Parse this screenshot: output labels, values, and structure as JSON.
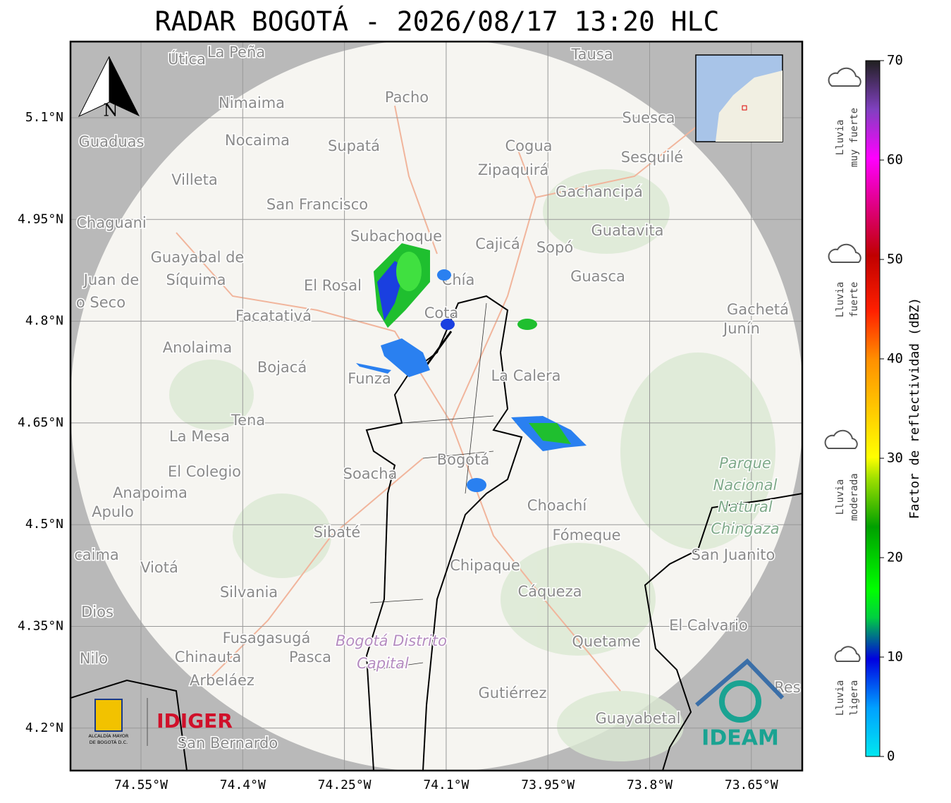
{
  "title": "RADAR BOGOTÁ - 2026/08/17 13:20 HLC",
  "map": {
    "lat_ticks": [
      "5.1°N",
      "4.95°N",
      "4.8°N",
      "4.65°N",
      "4.5°N",
      "4.35°N",
      "4.2°N"
    ],
    "lon_ticks": [
      "74.55°W",
      "74.4°W",
      "74.25°W",
      "74.1°W",
      "73.95°W",
      "73.8°W",
      "73.65°W"
    ],
    "compass": "N",
    "places": [
      "Útica",
      "La Peña",
      "Tausa",
      "Pacho",
      "Nimaima",
      "Guaduas",
      "Nocaima",
      "Supatá",
      "Cogua",
      "Suesca",
      "Sesquilé",
      "Zipaquirá",
      "Villeta",
      "Gachancipá",
      "San Francisco",
      "Chaguani",
      "Guatavita",
      "Subachoque",
      "Cajicá",
      "Sopó",
      "Guayabal de",
      "Síquima",
      "Juan de",
      "o Seco",
      "Guasca",
      "El Rosal",
      "Chía",
      "Cota",
      "Facatativá",
      "Gachetá",
      "Junín",
      "Anolaima",
      "Bojacá",
      "Funza",
      "La Calera",
      "Tena",
      "La Mesa",
      "Bogotá",
      "El Colegio",
      "Soacha",
      "Anapoima",
      "Apulo",
      "Choachí",
      "Sibaté",
      "Fómeque",
      "caima",
      "San Juanito",
      "Viotá",
      "Chipaque",
      "Silvania",
      "Cáqueza",
      "Dios",
      "El Calvario",
      "Fusagasugá",
      "Quetame",
      "Nilo",
      "Chinauta",
      "Pasca",
      "Arbeláez",
      "Gutiérrez",
      "Res",
      "Guayabetal",
      "San Bernardo"
    ],
    "park_label": [
      "Parque",
      "Nacional",
      "Natural",
      "Chingaza"
    ],
    "district_label": [
      "Bogotá Distrito",
      "Capital"
    ]
  },
  "colorbar": {
    "label": "Factor de reflectividad (dBZ)",
    "lim": [
      0,
      70
    ],
    "ticks": [
      0,
      10,
      20,
      30,
      40,
      50,
      60,
      70
    ]
  },
  "rain_levels": [
    {
      "line1": "Lluvia",
      "line2": "muy fuerte"
    },
    {
      "line1": "Lluvia",
      "line2": "fuerte"
    },
    {
      "line1": "Lluvia",
      "line2": "moderada"
    },
    {
      "line1": "Lluvia",
      "line2": "ligera"
    }
  ],
  "logos": {
    "alcaldia": [
      "ALCALDÍA MAYOR",
      "DE BOGOTÁ D.C."
    ],
    "idiger": "IDIGER",
    "ideam": "IDEAM"
  }
}
